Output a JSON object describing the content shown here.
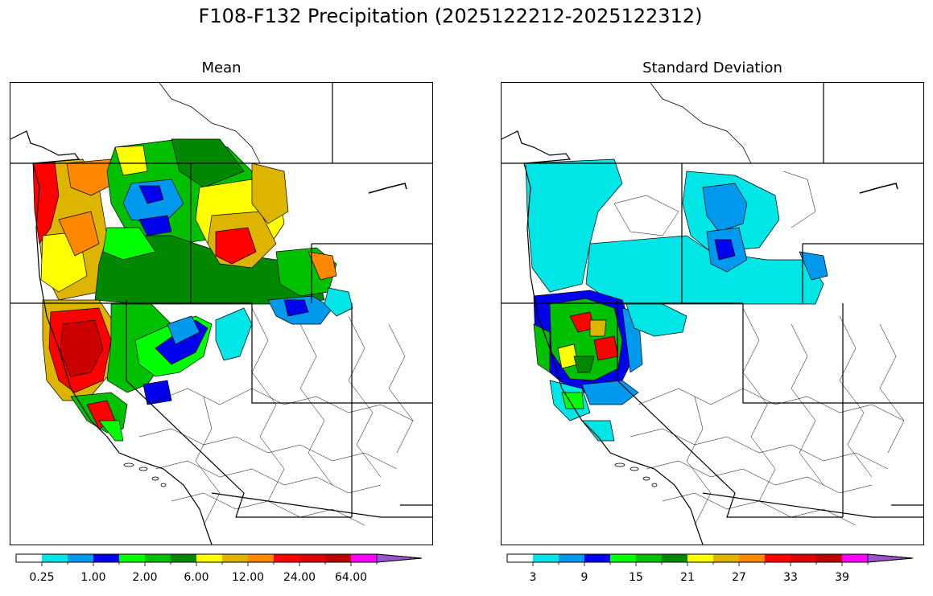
{
  "title": "F108-F132 Precipitation (2025122212-2025122312)",
  "panels": [
    {
      "title": "Mean",
      "colorbar": {
        "colors": [
          "#ffffff",
          "#00e5e5",
          "#0099ee",
          "#0000ee",
          "#00ff00",
          "#00c000",
          "#008800",
          "#ffff00",
          "#ddb500",
          "#ff8800",
          "#ff0000",
          "#dd0000",
          "#bb0000",
          "#ff00ff",
          "#9955cc"
        ],
        "labels": [
          "0.25",
          "1.00",
          "2.00",
          "6.00",
          "12.00",
          "24.00",
          "64.00"
        ],
        "extend": "max"
      }
    },
    {
      "title": "Standard Deviation",
      "colorbar": {
        "colors": [
          "#ffffff",
          "#00e5e5",
          "#0099ee",
          "#0000ee",
          "#00ff00",
          "#00c000",
          "#008800",
          "#ffff00",
          "#ddb500",
          "#ff8800",
          "#ff0000",
          "#dd0000",
          "#bb0000",
          "#ff00ff",
          "#9955cc"
        ],
        "labels": [
          "3",
          "9",
          "15",
          "21",
          "27",
          "33",
          "39"
        ],
        "extend": "max"
      }
    }
  ]
}
